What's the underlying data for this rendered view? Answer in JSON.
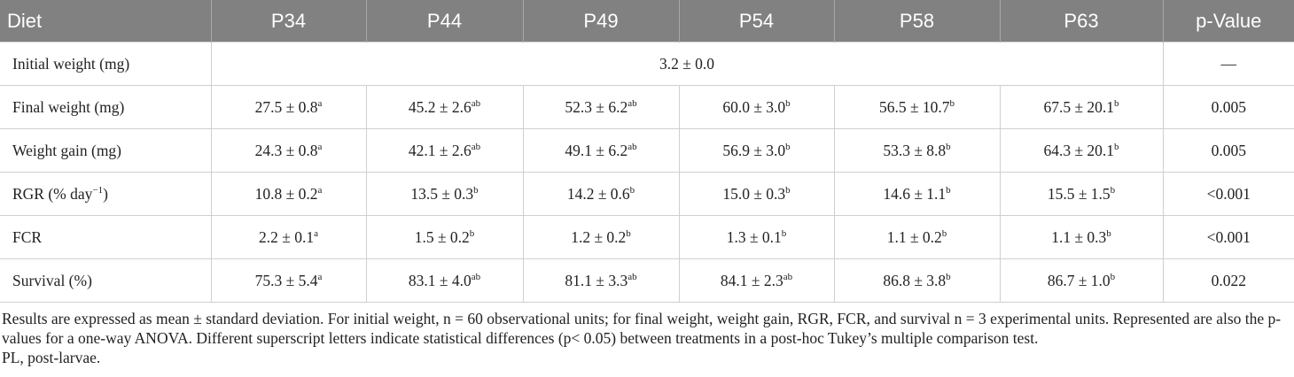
{
  "table": {
    "header": [
      "Diet",
      "P34",
      "P44",
      "P49",
      "P54",
      "P58",
      "P63",
      "p-Value"
    ],
    "rows": [
      {
        "label": {
          "text": "Initial weight (mg)"
        },
        "cells": [
          {
            "text": "3.2 ± 0.0"
          }
        ],
        "p": "—"
      },
      {
        "label": {
          "text": "Final weight (mg)"
        },
        "cells": [
          {
            "text": "27.5 ± 0.8",
            "sup": "a"
          },
          {
            "text": "45.2 ± 2.6",
            "sup": "ab"
          },
          {
            "text": "52.3 ± 6.2",
            "sup": "ab"
          },
          {
            "text": "60.0 ± 3.0",
            "sup": "b"
          },
          {
            "text": "56.5 ± 10.7",
            "sup": "b"
          },
          {
            "text": "67.5 ± 20.1",
            "sup": "b"
          }
        ],
        "p": "0.005"
      },
      {
        "label": {
          "text": "Weight gain (mg)"
        },
        "cells": [
          {
            "text": "24.3 ± 0.8",
            "sup": "a"
          },
          {
            "text": "42.1 ± 2.6",
            "sup": "ab"
          },
          {
            "text": "49.1 ± 6.2",
            "sup": "ab"
          },
          {
            "text": "56.9 ± 3.0",
            "sup": "b"
          },
          {
            "text": "53.3 ± 8.8",
            "sup": "b"
          },
          {
            "text": "64.3 ± 20.1",
            "sup": "b"
          }
        ],
        "p": "0.005"
      },
      {
        "label": {
          "text": "RGR (% day",
          "sup": "−1",
          "after": ")"
        },
        "cells": [
          {
            "text": "10.8 ± 0.2",
            "sup": "a"
          },
          {
            "text": "13.5 ± 0.3",
            "sup": "b"
          },
          {
            "text": "14.2 ± 0.6",
            "sup": "b"
          },
          {
            "text": "15.0 ± 0.3",
            "sup": "b"
          },
          {
            "text": "14.6 ± 1.1",
            "sup": "b"
          },
          {
            "text": "15.5 ± 1.5",
            "sup": "b"
          }
        ],
        "p": "<0.001"
      },
      {
        "label": {
          "text": "FCR"
        },
        "cells": [
          {
            "text": "2.2 ± 0.1",
            "sup": "a"
          },
          {
            "text": "1.5 ± 0.2",
            "sup": "b"
          },
          {
            "text": "1.2 ± 0.2",
            "sup": "b"
          },
          {
            "text": "1.3 ± 0.1",
            "sup": "b"
          },
          {
            "text": "1.1 ± 0.2",
            "sup": "b"
          },
          {
            "text": "1.1 ± 0.3",
            "sup": "b"
          }
        ],
        "p": "<0.001"
      },
      {
        "label": {
          "text": "Survival (%)"
        },
        "cells": [
          {
            "text": "75.3 ± 5.4",
            "sup": "a"
          },
          {
            "text": "83.1 ± 4.0",
            "sup": "ab"
          },
          {
            "text": "81.1 ± 3.3",
            "sup": "ab"
          },
          {
            "text": "84.1 ± 2.3",
            "sup": "ab"
          },
          {
            "text": "86.8 ± 3.8",
            "sup": "b"
          },
          {
            "text": "86.7 ± 1.0",
            "sup": "b"
          }
        ],
        "p": "0.022"
      }
    ],
    "notes": [
      "Results are expressed as mean ± standard deviation. For initial weight, n = 60 observational units; for final weight, weight gain, RGR, FCR, and survival n = 3 experimental units. Represented are also the p-values for a one-way ANOVA. Different superscript letters indicate statistical differences (p< 0.05) between treatments in a post-hoc Tukey’s multiple comparison test.",
      "PL, post-larvae."
    ]
  }
}
